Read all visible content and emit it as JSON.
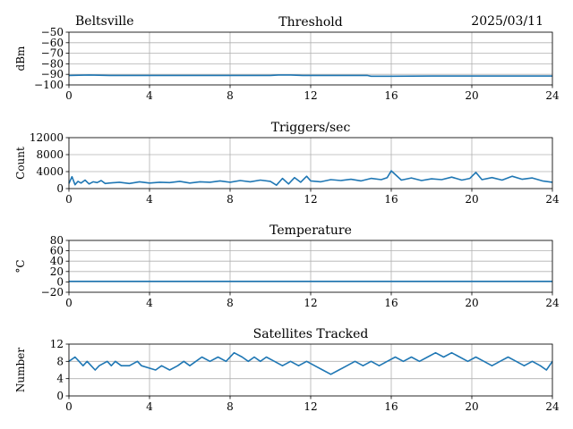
{
  "header": {
    "station": "Beltsville",
    "date": "2025/03/11"
  },
  "colors": {
    "series": "#1f77b4",
    "grid": "#b0b0b0",
    "axes": "#000000"
  },
  "chart_data": [
    {
      "type": "line",
      "title": "Threshold",
      "xlabel": "",
      "ylabel": "dBm",
      "xlim": [
        0,
        24
      ],
      "ylim": [
        -100,
        -50
      ],
      "xticks": [
        0,
        4,
        8,
        12,
        16,
        20,
        24
      ],
      "yticks": [
        -100,
        -90,
        -80,
        -70,
        -60,
        -50
      ],
      "xtick_labels": [
        "0",
        "4",
        "8",
        "12",
        "16",
        "20",
        "24"
      ],
      "ytick_labels": [
        "−100",
        "−90",
        "−80",
        "−70",
        "−60",
        "−50"
      ],
      "grid": true,
      "series": [
        {
          "x": [
            0,
            1,
            2,
            4,
            6,
            8,
            10,
            10.4,
            11,
            11.6,
            12,
            14,
            14.8,
            15,
            16,
            18,
            20,
            22,
            24
          ],
          "y": [
            -91,
            -90.6,
            -91,
            -91,
            -91,
            -91,
            -91,
            -90.6,
            -90.6,
            -91,
            -91,
            -91,
            -91,
            -91.8,
            -91.8,
            -91.6,
            -91.6,
            -91.6,
            -91.6
          ]
        }
      ]
    },
    {
      "type": "line",
      "title": "Triggers/sec",
      "xlabel": "",
      "ylabel": "Count",
      "xlim": [
        0,
        24
      ],
      "ylim": [
        0,
        12000
      ],
      "xticks": [
        0,
        4,
        8,
        12,
        16,
        20,
        24
      ],
      "yticks": [
        0,
        4000,
        8000,
        12000
      ],
      "xtick_labels": [
        "0",
        "4",
        "8",
        "12",
        "16",
        "20",
        "24"
      ],
      "ytick_labels": [
        "0",
        "4000",
        "8000",
        "12000"
      ],
      "grid": true,
      "series": [
        {
          "x": [
            0,
            0.15,
            0.3,
            0.45,
            0.6,
            0.8,
            1.0,
            1.2,
            1.4,
            1.6,
            1.8,
            2.0,
            2.5,
            3.0,
            3.5,
            4.0,
            4.5,
            5.0,
            5.5,
            6.0,
            6.5,
            7.0,
            7.5,
            8.0,
            8.5,
            9.0,
            9.5,
            10.0,
            10.3,
            10.6,
            10.9,
            11.2,
            11.5,
            11.8,
            12.0,
            12.5,
            13.0,
            13.5,
            14.0,
            14.5,
            15.0,
            15.5,
            15.8,
            16.0,
            16.5,
            17.0,
            17.5,
            18.0,
            18.5,
            19.0,
            19.5,
            19.9,
            20.2,
            20.5,
            21.0,
            21.5,
            22.0,
            22.5,
            23.0,
            23.5,
            24.0
          ],
          "y": [
            1200,
            2800,
            900,
            1700,
            1300,
            2000,
            1100,
            1600,
            1400,
            1900,
            1200,
            1300,
            1500,
            1200,
            1600,
            1300,
            1500,
            1400,
            1700,
            1300,
            1600,
            1500,
            1800,
            1500,
            1900,
            1600,
            2000,
            1700,
            800,
            2400,
            1100,
            2600,
            1500,
            2900,
            1800,
            1600,
            2100,
            1900,
            2200,
            1800,
            2400,
            2100,
            2600,
            4200,
            2000,
            2500,
            1900,
            2300,
            2100,
            2700,
            2000,
            2400,
            3800,
            2100,
            2600,
            2000,
            2900,
            2200,
            2500,
            1800,
            1500
          ]
        }
      ]
    },
    {
      "type": "line",
      "title": "Temperature",
      "xlabel": "",
      "ylabel": "°C",
      "xlim": [
        0,
        24
      ],
      "ylim": [
        -20,
        80
      ],
      "xticks": [
        0,
        4,
        8,
        12,
        16,
        20,
        24
      ],
      "yticks": [
        -20,
        0,
        20,
        40,
        60,
        80
      ],
      "xtick_labels": [
        "0",
        "4",
        "8",
        "12",
        "16",
        "20",
        "24"
      ],
      "ytick_labels": [
        "−20",
        "0",
        "20",
        "40",
        "60",
        "80"
      ],
      "grid": true,
      "series": [
        {
          "x": [
            0,
            24
          ],
          "y": [
            1,
            1
          ]
        }
      ]
    },
    {
      "type": "line",
      "title": "Satellites Tracked",
      "xlabel": "",
      "ylabel": "Number",
      "xlim": [
        0,
        24
      ],
      "ylim": [
        0,
        12
      ],
      "xticks": [
        0,
        4,
        8,
        12,
        16,
        20,
        24
      ],
      "yticks": [
        0,
        4,
        8,
        12
      ],
      "xtick_labels": [
        "0",
        "4",
        "8",
        "12",
        "16",
        "20",
        "24"
      ],
      "ytick_labels": [
        "0",
        "4",
        "8",
        "12"
      ],
      "grid": true,
      "series": [
        {
          "x": [
            0,
            0.3,
            0.5,
            0.7,
            0.9,
            1.1,
            1.3,
            1.5,
            1.9,
            2.1,
            2.3,
            2.6,
            3.0,
            3.4,
            3.6,
            4.3,
            4.6,
            5.0,
            5.4,
            5.7,
            6.0,
            6.3,
            6.6,
            7.0,
            7.4,
            7.8,
            8.2,
            8.6,
            8.9,
            9.2,
            9.5,
            9.8,
            10.2,
            10.6,
            11.0,
            11.4,
            11.8,
            12.2,
            12.6,
            13.0,
            13.4,
            13.8,
            14.2,
            14.6,
            15.0,
            15.4,
            15.8,
            16.2,
            16.6,
            17.0,
            17.4,
            17.8,
            18.2,
            18.6,
            19.0,
            19.4,
            19.8,
            20.2,
            20.6,
            21.0,
            21.4,
            21.8,
            22.2,
            22.6,
            23.0,
            23.4,
            23.7,
            24.0
          ],
          "y": [
            8,
            9,
            8,
            7,
            8,
            7,
            6,
            7,
            8,
            7,
            8,
            7,
            7,
            8,
            7,
            6,
            7,
            6,
            7,
            8,
            7,
            8,
            9,
            8,
            9,
            8,
            10,
            9,
            8,
            9,
            8,
            9,
            8,
            7,
            8,
            7,
            8,
            7,
            6,
            5,
            6,
            7,
            8,
            7,
            8,
            7,
            8,
            9,
            8,
            9,
            8,
            9,
            10,
            9,
            10,
            9,
            8,
            9,
            8,
            7,
            8,
            9,
            8,
            7,
            8,
            7,
            6,
            8
          ]
        }
      ]
    }
  ]
}
